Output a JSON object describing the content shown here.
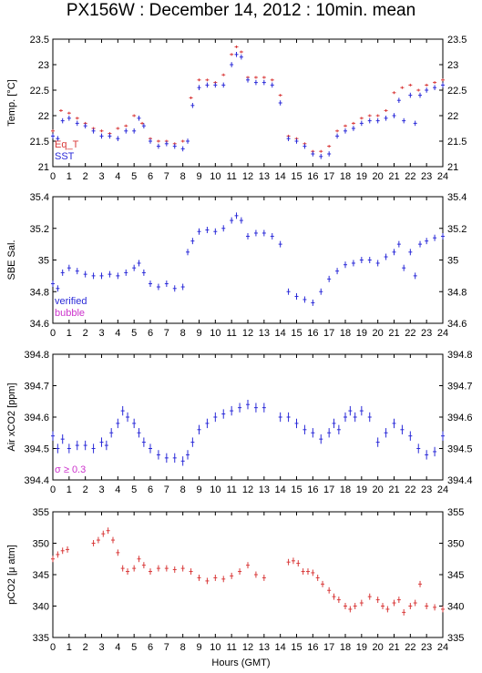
{
  "title": "PX156W : December 14, 2012 : 10min. mean",
  "xlabel": "Hours (GMT)",
  "colors": {
    "red": "#d93a3a",
    "blue": "#2a2ad8",
    "magenta": "#cc33cc",
    "axis": "#000000"
  },
  "chart_data": [
    {
      "type": "scatter",
      "id": "temp",
      "ylabel": "Temp. [°C]",
      "ylim": [
        21,
        23.5
      ],
      "yticks": [
        21,
        21.5,
        22,
        22.5,
        23,
        23.5
      ],
      "xlim": [
        0,
        24
      ],
      "xticks": [
        0,
        1,
        2,
        3,
        4,
        5,
        6,
        7,
        8,
        9,
        10,
        11,
        12,
        13,
        14,
        15,
        16,
        17,
        18,
        19,
        20,
        21,
        22,
        23,
        24
      ],
      "show_xtick_labels": true,
      "legend": {
        "placement": "bottom-left",
        "entries": [
          {
            "label": "Eq_T",
            "color": "red"
          },
          {
            "label": "SST",
            "color": "blue"
          }
        ]
      },
      "series": [
        {
          "name": "Eq_T",
          "color": "red",
          "err": 0.02,
          "x": [
            0,
            0.5,
            1,
            1.5,
            2,
            2.5,
            3,
            3.5,
            4,
            4.5,
            5,
            5.5,
            6,
            6.5,
            7,
            7.5,
            8,
            8.5,
            9,
            9.5,
            10,
            10.5,
            11,
            11.3,
            11.6,
            12,
            12.5,
            13,
            13.5,
            14,
            14.5,
            15,
            15.5,
            16,
            16.5,
            17,
            17.5,
            18,
            18.5,
            19,
            19.5,
            20,
            20.5,
            21,
            21.5,
            22,
            22.5,
            23,
            23.5,
            24
          ],
          "y": [
            21.7,
            22.1,
            22.05,
            21.95,
            21.85,
            21.75,
            21.7,
            21.65,
            21.75,
            21.8,
            22.0,
            21.85,
            21.55,
            21.5,
            21.5,
            21.45,
            21.5,
            22.35,
            22.7,
            22.7,
            22.65,
            22.8,
            23.2,
            23.35,
            23.25,
            22.75,
            22.75,
            22.75,
            22.7,
            22.4,
            21.6,
            21.55,
            21.45,
            21.3,
            21.3,
            21.4,
            21.7,
            21.8,
            21.85,
            21.95,
            22.0,
            22.0,
            22.1,
            22.45,
            22.55,
            22.6,
            22.5,
            22.6,
            22.65,
            22.7
          ]
        },
        {
          "name": "SST",
          "color": "blue",
          "err": 0.05,
          "x": [
            0,
            0.3,
            0.6,
            1,
            1.5,
            2,
            2.5,
            3,
            3.5,
            4,
            4.5,
            5,
            5.3,
            5.6,
            6,
            6.5,
            7,
            7.5,
            8,
            8.3,
            8.6,
            9,
            9.5,
            10,
            10.5,
            11,
            11.3,
            11.6,
            12,
            12.5,
            13,
            13.5,
            14,
            14.5,
            15,
            15.5,
            16,
            16.5,
            17,
            17.5,
            18,
            18.5,
            19,
            19.5,
            20,
            20.5,
            21,
            21.3,
            21.6,
            22,
            22.3,
            22.6,
            23,
            23.5,
            24
          ],
          "y": [
            21.6,
            21.55,
            21.9,
            21.95,
            21.85,
            21.8,
            21.7,
            21.6,
            21.6,
            21.55,
            21.7,
            21.7,
            21.95,
            21.8,
            21.5,
            21.4,
            21.45,
            21.4,
            21.35,
            21.5,
            22.2,
            22.55,
            22.6,
            22.6,
            22.6,
            23.0,
            23.2,
            23.15,
            22.7,
            22.65,
            22.65,
            22.6,
            22.25,
            21.55,
            21.5,
            21.4,
            21.25,
            21.2,
            21.25,
            21.6,
            21.7,
            21.75,
            21.85,
            21.9,
            21.9,
            21.95,
            22.0,
            22.3,
            21.9,
            22.4,
            21.85,
            22.4,
            22.5,
            22.55,
            22.6
          ]
        }
      ]
    },
    {
      "type": "scatter",
      "id": "sal",
      "ylabel": "SBE Sal.",
      "ylim": [
        34.6,
        35.4
      ],
      "yticks": [
        34.6,
        34.8,
        35,
        35.2,
        35.4
      ],
      "xlim": [
        0,
        24
      ],
      "xticks": [
        0,
        1,
        2,
        3,
        4,
        5,
        6,
        7,
        8,
        9,
        10,
        11,
        12,
        13,
        14,
        15,
        16,
        17,
        18,
        19,
        20,
        21,
        22,
        23,
        24
      ],
      "show_xtick_labels": true,
      "legend": {
        "placement": "bottom-left",
        "entries": [
          {
            "label": "verified",
            "color": "blue"
          },
          {
            "label": "bubble",
            "color": "magenta"
          }
        ]
      },
      "series": [
        {
          "name": "verified",
          "color": "blue",
          "err": 0.02,
          "x": [
            0,
            0.3,
            0.6,
            1,
            1.5,
            2,
            2.5,
            3,
            3.5,
            4,
            4.5,
            5,
            5.3,
            5.6,
            6,
            6.5,
            7,
            7.5,
            8,
            8.3,
            8.6,
            9,
            9.5,
            10,
            10.5,
            11,
            11.3,
            11.6,
            12,
            12.5,
            13,
            13.5,
            14,
            14.5,
            15,
            15.5,
            16,
            16.5,
            17,
            17.5,
            18,
            18.5,
            19,
            19.5,
            20,
            20.5,
            21,
            21.3,
            21.6,
            22,
            22.3,
            22.6,
            23,
            23.5,
            24
          ],
          "y": [
            34.85,
            34.82,
            34.92,
            34.95,
            34.93,
            34.91,
            34.9,
            34.9,
            34.91,
            34.9,
            34.92,
            34.95,
            34.98,
            34.92,
            34.85,
            34.83,
            34.85,
            34.82,
            34.83,
            35.05,
            35.12,
            35.18,
            35.19,
            35.18,
            35.2,
            35.25,
            35.28,
            35.25,
            35.15,
            35.17,
            35.17,
            35.15,
            35.1,
            34.8,
            34.77,
            34.75,
            34.73,
            34.8,
            34.88,
            34.93,
            34.97,
            34.98,
            35.0,
            35.0,
            34.98,
            35.02,
            35.05,
            35.1,
            34.95,
            35.05,
            34.9,
            35.1,
            35.12,
            35.14,
            35.15
          ]
        }
      ]
    },
    {
      "type": "scatter",
      "id": "xco2",
      "ylabel": "Air xCO2 [ppm]",
      "ylim": [
        394.4,
        394.8
      ],
      "yticks": [
        394.4,
        394.5,
        394.6,
        394.7,
        394.8
      ],
      "xlim": [
        0,
        24
      ],
      "xticks": [
        0,
        1,
        2,
        3,
        4,
        5,
        6,
        7,
        8,
        9,
        10,
        11,
        12,
        13,
        14,
        15,
        16,
        17,
        18,
        19,
        20,
        21,
        22,
        23,
        24
      ],
      "show_xtick_labels": true,
      "legend": {
        "placement": "bottom-left",
        "entries": [
          {
            "label": "σ ≥ 0.3",
            "color": "magenta"
          }
        ]
      },
      "series": [
        {
          "name": "air",
          "color": "blue",
          "err": 0.015,
          "x": [
            0,
            0.3,
            0.6,
            1,
            1.5,
            2,
            2.5,
            3,
            3.3,
            3.6,
            4,
            4.3,
            4.6,
            5,
            5.3,
            5.6,
            6,
            6.5,
            7,
            7.5,
            8,
            8.3,
            8.6,
            9,
            9.5,
            10,
            10.5,
            11,
            11.5,
            12,
            12.5,
            13,
            14,
            14.5,
            15,
            15.5,
            16,
            16.5,
            17,
            17.3,
            17.6,
            18,
            18.3,
            18.6,
            19,
            19.5,
            20,
            20.5,
            21,
            21.5,
            22,
            22.5,
            23,
            23.5,
            24
          ],
          "y": [
            394.54,
            394.5,
            394.53,
            394.5,
            394.51,
            394.51,
            394.5,
            394.52,
            394.51,
            394.55,
            394.58,
            394.62,
            394.6,
            394.58,
            394.55,
            394.52,
            394.5,
            394.48,
            394.47,
            394.47,
            394.46,
            394.48,
            394.52,
            394.56,
            394.58,
            394.6,
            394.61,
            394.62,
            394.63,
            394.64,
            394.63,
            394.63,
            394.6,
            394.6,
            394.58,
            394.56,
            394.55,
            394.53,
            394.55,
            394.58,
            394.56,
            394.6,
            394.62,
            394.6,
            394.62,
            394.6,
            394.52,
            394.55,
            394.58,
            394.56,
            394.54,
            394.5,
            394.48,
            394.49,
            394.54
          ]
        }
      ]
    },
    {
      "type": "scatter",
      "id": "pco2",
      "ylabel": "pCO2 [μ atm]",
      "ylim": [
        335,
        355
      ],
      "yticks": [
        335,
        340,
        345,
        350,
        355
      ],
      "xlim": [
        0,
        24
      ],
      "xticks": [
        0,
        1,
        2,
        3,
        4,
        5,
        6,
        7,
        8,
        9,
        10,
        11,
        12,
        13,
        14,
        15,
        16,
        17,
        18,
        19,
        20,
        21,
        22,
        23,
        24
      ],
      "show_xtick_labels": true,
      "series": [
        {
          "name": "pCO2",
          "color": "red",
          "err": 0.5,
          "x": [
            0,
            0.3,
            0.6,
            0.9,
            2.5,
            2.8,
            3.1,
            3.4,
            3.7,
            4,
            4.3,
            4.6,
            5,
            5.3,
            5.6,
            6,
            6.5,
            7,
            7.5,
            8,
            8.5,
            9,
            9.5,
            10,
            10.5,
            11,
            11.5,
            12,
            12.5,
            13,
            14.5,
            14.8,
            15.1,
            15.4,
            15.7,
            16,
            16.3,
            16.6,
            17,
            17.3,
            17.6,
            18,
            18.3,
            18.6,
            19,
            19.5,
            20,
            20.3,
            20.6,
            21,
            21.3,
            21.6,
            22,
            22.3,
            22.6,
            23,
            23.5,
            24
          ],
          "y": [
            347.5,
            348.2,
            348.8,
            349,
            350,
            350.5,
            351.5,
            352,
            350.5,
            348.5,
            346,
            345.5,
            346,
            347.5,
            346.5,
            345.5,
            346,
            346,
            345.8,
            346,
            345.5,
            344.5,
            344,
            344.5,
            344.3,
            344.8,
            345.5,
            346.5,
            345,
            344.5,
            347,
            347.2,
            346.8,
            345.5,
            345.5,
            345.3,
            344.5,
            343.5,
            342.5,
            341.5,
            341,
            340,
            339.5,
            340,
            340.5,
            341.5,
            341,
            340,
            339.5,
            340.5,
            341,
            339,
            340,
            340.5,
            343.5,
            340,
            339.8,
            339.5
          ]
        }
      ]
    }
  ]
}
